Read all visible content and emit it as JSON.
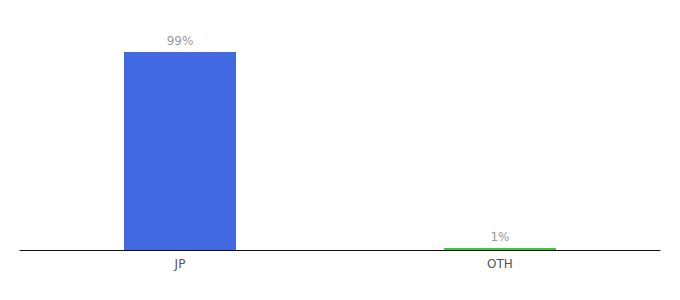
{
  "chart_data": {
    "type": "bar",
    "categories": [
      "JP",
      "OTH"
    ],
    "values": [
      99,
      1
    ],
    "value_labels": [
      "99%",
      "1%"
    ],
    "colors": [
      "#4169E1",
      "#33CC33"
    ],
    "ylim": [
      0,
      110
    ],
    "data_labels": true,
    "tick_labels": "x",
    "grid": false
  }
}
